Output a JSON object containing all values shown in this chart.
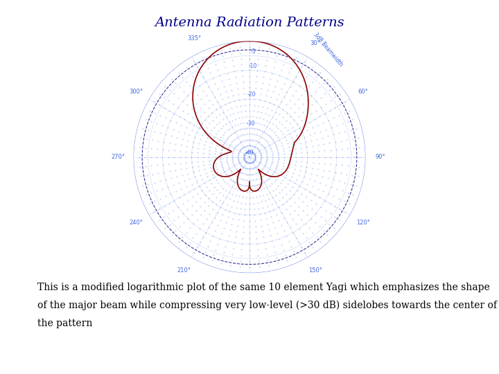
{
  "title": "Antenna Radiation Patterns",
  "title_color": "#00008B",
  "title_fontsize": 14,
  "description_line1": "This is a modified logarithmic plot of the same 10 element Yagi which emphasizes the shape",
  "description_line2": "of the major beam while compressing very low-level (>30 dB) sidelobes towards the center of",
  "description_line3": "the pattern",
  "description_fontsize": 10,
  "plot_color": "#8B0000",
  "plot_lw": 1.2,
  "grid_color": "#4169E1",
  "grid_lw": 0.5,
  "grid_alpha": 0.6,
  "dashed_circle_color": "#000080",
  "background": "#FFFFFF",
  "db_labels": [
    -5,
    -10,
    -20,
    -30,
    -40
  ],
  "db_label_texts": [
    "-5",
    "-10",
    "-20",
    "-30",
    "-40"
  ],
  "max_db": 0,
  "min_db": -40
}
